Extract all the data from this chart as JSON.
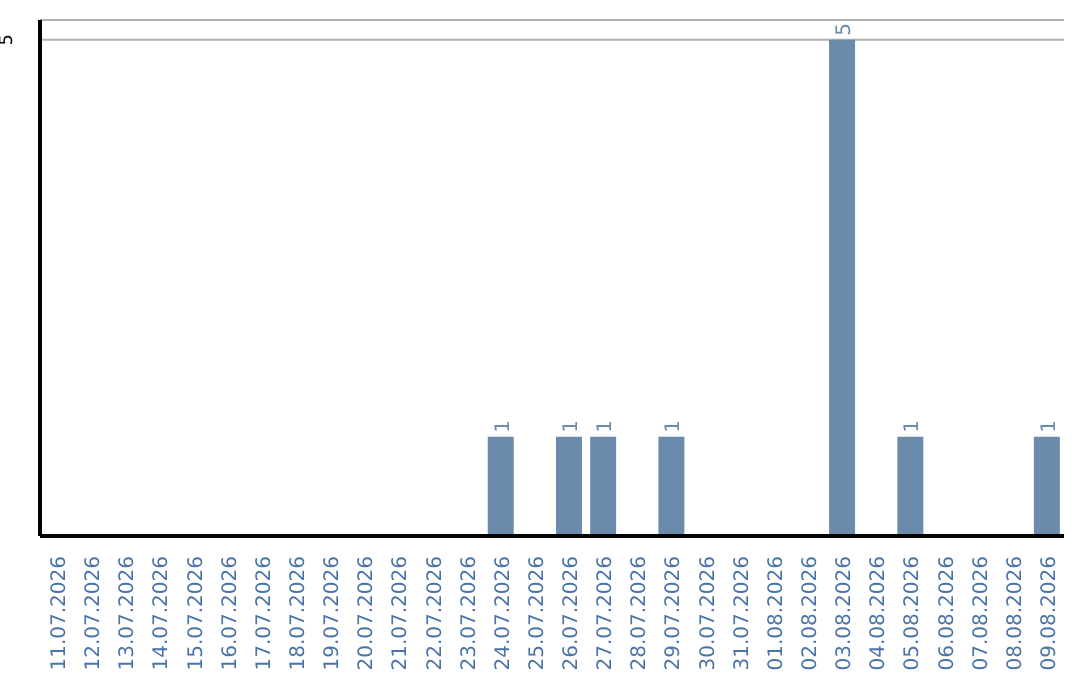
{
  "chart_data": {
    "type": "bar",
    "categories": [
      "11.07.2026",
      "12.07.2026",
      "13.07.2026",
      "14.07.2026",
      "15.07.2026",
      "16.07.2026",
      "17.07.2026",
      "18.07.2026",
      "19.07.2026",
      "20.07.2026",
      "21.07.2026",
      "22.07.2026",
      "23.07.2026",
      "24.07.2026",
      "25.07.2026",
      "26.07.2026",
      "27.07.2026",
      "28.07.2026",
      "29.07.2026",
      "30.07.2026",
      "31.07.2026",
      "01.08.2026",
      "02.08.2026",
      "03.08.2026",
      "04.08.2026",
      "05.08.2026",
      "06.08.2026",
      "07.08.2026",
      "08.08.2026",
      "09.08.2026"
    ],
    "values": [
      null,
      null,
      null,
      null,
      null,
      null,
      null,
      null,
      null,
      null,
      null,
      null,
      null,
      1,
      null,
      1,
      1,
      null,
      1,
      null,
      null,
      null,
      null,
      5,
      null,
      1,
      null,
      null,
      null,
      1
    ],
    "data_labels": true,
    "color": "#6a8bab",
    "ylim": [
      0,
      5.2
    ],
    "yticks": [
      5
    ],
    "grid": "y"
  }
}
